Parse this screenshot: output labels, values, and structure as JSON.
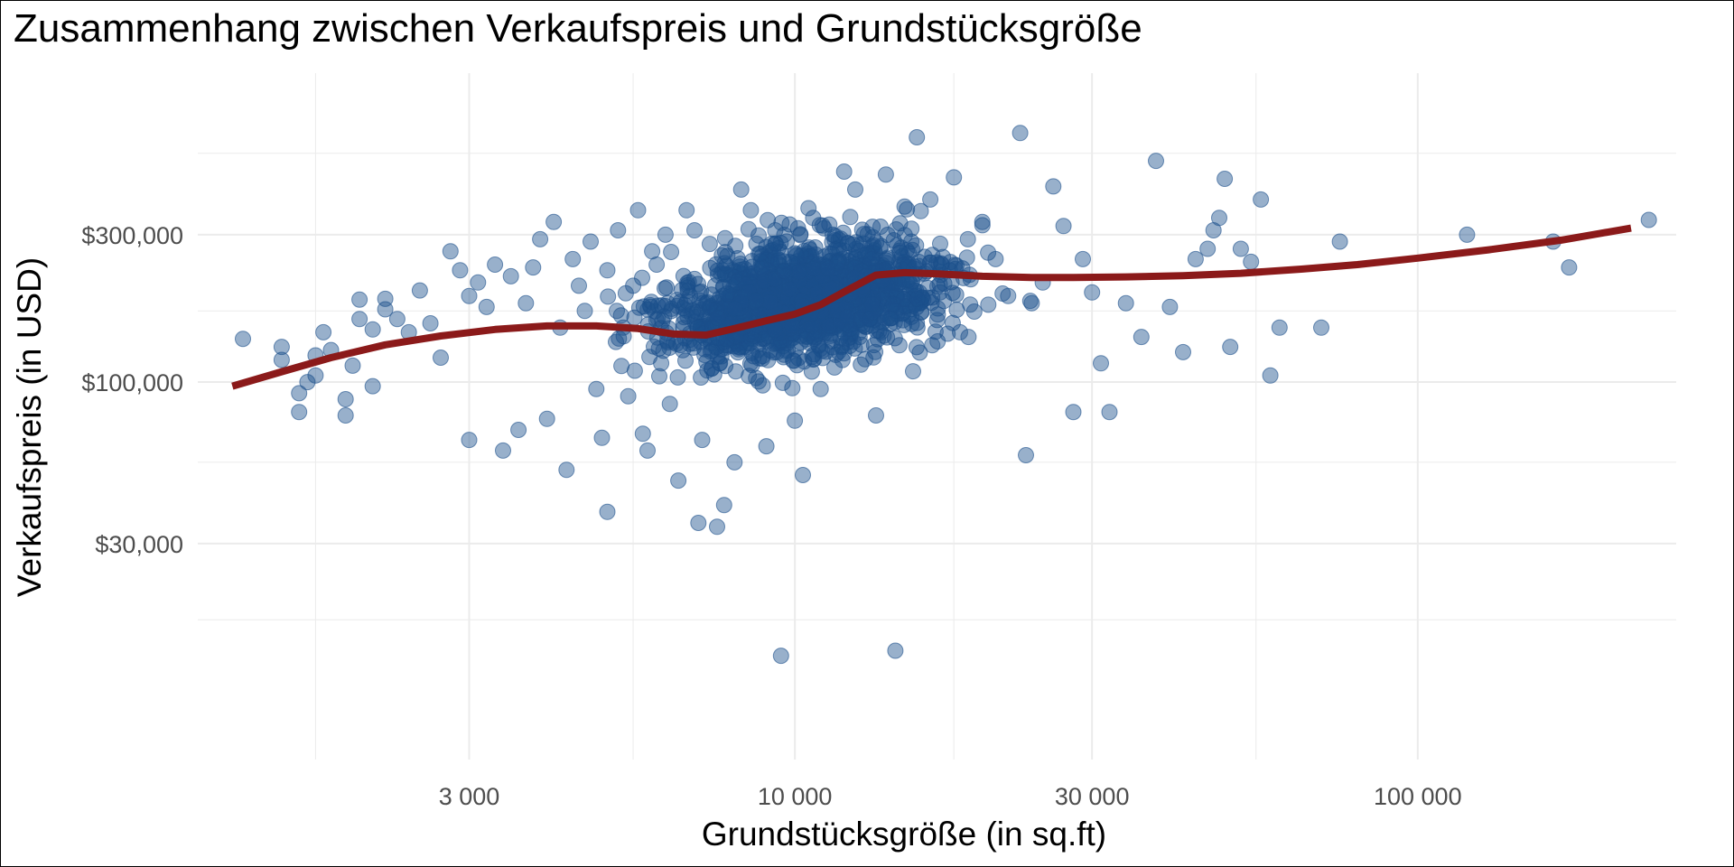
{
  "chart_data": {
    "type": "scatter",
    "title": "Zusammenhang zwischen Verkaufspreis und Grundstücksgröße",
    "xlabel": "Grundstücksgröße (in sq.ft)",
    "ylabel": "Verkaufspreis (in USD)",
    "x_scale": "log10",
    "y_scale": "log10",
    "xlim": [
      1100,
      260000
    ],
    "ylim": [
      6000,
      1000000
    ],
    "x_ticks": [
      {
        "value": 3000,
        "label": "3 000"
      },
      {
        "value": 10000,
        "label": "10 000"
      },
      {
        "value": 30000,
        "label": "30 000"
      },
      {
        "value": 100000,
        "label": "100 000"
      }
    ],
    "y_ticks": [
      {
        "value": 30000,
        "label": "$30,000"
      },
      {
        "value": 100000,
        "label": "$100,000"
      },
      {
        "value": 300000,
        "label": "$300,000"
      }
    ],
    "x_minor_grid": [
      1700,
      5500,
      18000,
      55000
    ],
    "y_minor_grid": [
      17000,
      55000,
      170000,
      550000
    ],
    "grid": true,
    "legend": "none",
    "colors": {
      "points": "#1a4f8b",
      "trend": "#8b1a1a",
      "grid": "#ebebeb"
    },
    "points_dense_cluster": {
      "description_count": 1500,
      "x_center": 10500,
      "y_center": 185000
    },
    "points": [
      [
        1300,
        138000
      ],
      [
        1500,
        130000
      ],
      [
        1500,
        118000
      ],
      [
        1600,
        92000
      ],
      [
        1600,
        80000
      ],
      [
        1650,
        100000
      ],
      [
        1700,
        122000
      ],
      [
        1700,
        105000
      ],
      [
        1750,
        145000
      ],
      [
        1800,
        127000
      ],
      [
        1900,
        88000
      ],
      [
        1900,
        78000
      ],
      [
        1950,
        113000
      ],
      [
        2000,
        185000
      ],
      [
        2000,
        160000
      ],
      [
        2100,
        148000
      ],
      [
        2100,
        97000
      ],
      [
        2200,
        186000
      ],
      [
        2200,
        172000
      ],
      [
        2300,
        160000
      ],
      [
        2400,
        145000
      ],
      [
        2500,
        198000
      ],
      [
        2600,
        155000
      ],
      [
        2700,
        120000
      ],
      [
        2800,
        265000
      ],
      [
        2900,
        230000
      ],
      [
        3000,
        190000
      ],
      [
        3000,
        65000
      ],
      [
        3100,
        210000
      ],
      [
        3200,
        175000
      ],
      [
        3300,
        240000
      ],
      [
        3400,
        60000
      ],
      [
        3500,
        220000
      ],
      [
        3600,
        70000
      ],
      [
        3700,
        180000
      ],
      [
        3800,
        235000
      ],
      [
        3900,
        290000
      ],
      [
        4000,
        76000
      ],
      [
        4100,
        330000
      ],
      [
        4200,
        150000
      ],
      [
        4300,
        52000
      ],
      [
        4400,
        250000
      ],
      [
        4500,
        205000
      ],
      [
        4600,
        170000
      ],
      [
        4700,
        285000
      ],
      [
        4800,
        95000
      ],
      [
        4900,
        66000
      ],
      [
        5000,
        230000
      ],
      [
        5000,
        38000
      ],
      [
        5200,
        310000
      ],
      [
        5300,
        150000
      ],
      [
        5400,
        90000
      ],
      [
        5500,
        205000
      ],
      [
        5600,
        360000
      ],
      [
        5700,
        68000
      ],
      [
        5800,
        60000
      ],
      [
        5900,
        265000
      ],
      [
        6000,
        240000
      ],
      [
        6100,
        115000
      ],
      [
        6200,
        300000
      ],
      [
        6300,
        85000
      ],
      [
        6500,
        48000
      ],
      [
        6700,
        360000
      ],
      [
        6900,
        310000
      ],
      [
        7000,
        35000
      ],
      [
        7100,
        65000
      ],
      [
        7300,
        280000
      ],
      [
        7500,
        34000
      ],
      [
        7700,
        40000
      ],
      [
        8000,
        55000
      ],
      [
        8200,
        420000
      ],
      [
        8500,
        360000
      ],
      [
        8800,
        260000
      ],
      [
        9000,
        62000
      ],
      [
        9300,
        310000
      ],
      [
        9500,
        13000
      ],
      [
        9800,
        200000
      ],
      [
        10000,
        75000
      ],
      [
        10300,
        50000
      ],
      [
        10700,
        340000
      ],
      [
        11000,
        95000
      ],
      [
        11500,
        300000
      ],
      [
        12000,
        480000
      ],
      [
        12500,
        420000
      ],
      [
        13000,
        220000
      ],
      [
        13500,
        78000
      ],
      [
        14000,
        470000
      ],
      [
        14500,
        13500
      ],
      [
        15000,
        370000
      ],
      [
        15700,
        620000
      ],
      [
        16500,
        390000
      ],
      [
        17200,
        240000
      ],
      [
        18000,
        460000
      ],
      [
        19000,
        140000
      ],
      [
        20000,
        330000
      ],
      [
        21000,
        250000
      ],
      [
        22000,
        190000
      ],
      [
        23000,
        640000
      ],
      [
        23500,
        58000
      ],
      [
        24000,
        180000
      ],
      [
        25000,
        210000
      ],
      [
        26000,
        430000
      ],
      [
        27000,
        320000
      ],
      [
        28000,
        80000
      ],
      [
        29000,
        250000
      ],
      [
        30000,
        195000
      ],
      [
        31000,
        115000
      ],
      [
        32000,
        80000
      ],
      [
        34000,
        180000
      ],
      [
        36000,
        140000
      ],
      [
        38000,
        520000
      ],
      [
        40000,
        175000
      ],
      [
        42000,
        125000
      ],
      [
        44000,
        250000
      ],
      [
        46000,
        270000
      ],
      [
        47000,
        310000
      ],
      [
        48000,
        340000
      ],
      [
        49000,
        455000
      ],
      [
        50000,
        130000
      ],
      [
        52000,
        270000
      ],
      [
        54000,
        245000
      ],
      [
        56000,
        390000
      ],
      [
        58000,
        105000
      ],
      [
        60000,
        150000
      ],
      [
        70000,
        150000
      ],
      [
        75000,
        285000
      ],
      [
        120000,
        300000
      ],
      [
        165000,
        285000
      ],
      [
        175000,
        235000
      ],
      [
        235000,
        335000
      ]
    ],
    "trend_line": {
      "name": "",
      "x": [
        1250,
        1500,
        1800,
        2200,
        2700,
        3300,
        4000,
        4800,
        5600,
        6400,
        7200,
        8000,
        9000,
        10000,
        11000,
        12000,
        13500,
        15000,
        17000,
        20000,
        24000,
        28000,
        34000,
        42000,
        52000,
        65000,
        80000,
        100000,
        130000,
        170000,
        220000
      ],
      "y": [
        97000,
        108000,
        120000,
        132000,
        141000,
        148000,
        152000,
        152000,
        149000,
        143000,
        142000,
        149000,
        158000,
        166000,
        178000,
        196000,
        222000,
        226000,
        224000,
        220000,
        218000,
        218000,
        219000,
        221000,
        225000,
        232000,
        240000,
        252000,
        268000,
        288000,
        315000
      ]
    }
  }
}
